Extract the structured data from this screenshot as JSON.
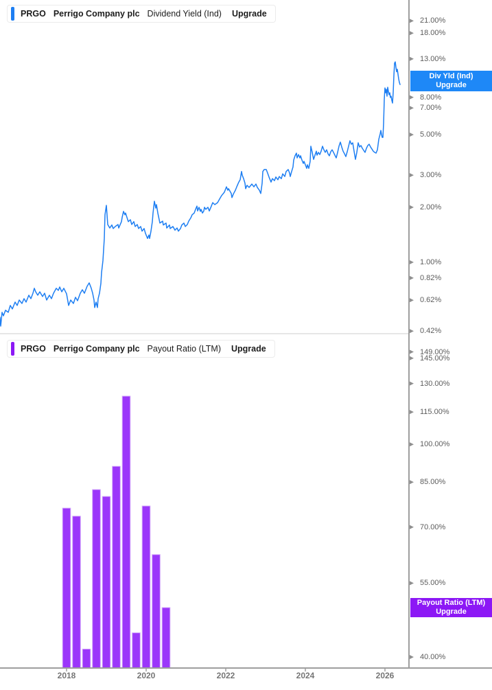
{
  "app": {
    "background": "#ffffff"
  },
  "colors": {
    "line_blue": "#1d7ef2",
    "box_blue": "#1e88f7",
    "legend_accent_blue": "#1d7ef2",
    "bar_purple": "#9b36fa",
    "bar_border": "#d2a6fb",
    "box_purple": "#8c18f5",
    "legend_accent_purple": "#8c18f5",
    "axis_line": "#9e9e9e",
    "panel_divider": "#cccccc",
    "tick_marker": "#8f8f8f",
    "tick_label_text": "#5c5c5c",
    "year_label_text": "#757575",
    "legend_text": "#1c1c1c"
  },
  "panels": [
    {
      "legend": {
        "ticker": "PRGO",
        "company": "Perrigo Company plc",
        "metric": "Dividend Yield (Ind)",
        "action": "Upgrade"
      },
      "price_label": {
        "line1": "Div Yld (Ind)",
        "line2": "Upgrade"
      }
    },
    {
      "legend": {
        "ticker": "PRGO",
        "company": "Perrigo Company plc",
        "metric": "Payout Ratio (LTM)",
        "action": "Upgrade"
      },
      "price_label": {
        "line1": "Payout Ratio (LTM)",
        "line2": "Upgrade"
      }
    }
  ],
  "x_axis": {
    "year_labels": [
      2018,
      2020,
      2022,
      2024,
      2026
    ]
  },
  "chart_data": [
    {
      "type": "line",
      "title": "Dividend Yield (Ind)",
      "ticker": "PRGO",
      "company": "Perrigo Company plc",
      "y_scale": "log",
      "y_unit": "%",
      "y_ticks_pct": [
        21,
        18,
        13,
        8,
        7,
        5,
        3,
        2,
        1,
        0.82,
        0.62,
        0.42
      ],
      "x_range": [
        2016.33,
        2026.59
      ],
      "legend_position": "top-left",
      "grid": false,
      "points": [
        [
          2016.328,
          0.5
        ],
        [
          2016.345,
          0.447
        ],
        [
          2016.38,
          0.532
        ],
        [
          2016.414,
          0.509
        ],
        [
          2016.466,
          0.546
        ],
        [
          2016.535,
          0.532
        ],
        [
          2016.586,
          0.58
        ],
        [
          2016.638,
          0.555
        ],
        [
          2016.707,
          0.605
        ],
        [
          2016.759,
          0.58
        ],
        [
          2016.811,
          0.621
        ],
        [
          2016.88,
          0.595
        ],
        [
          2016.931,
          0.632
        ],
        [
          2016.983,
          0.605
        ],
        [
          2017.052,
          0.66
        ],
        [
          2017.104,
          0.632
        ],
        [
          2017.155,
          0.677
        ],
        [
          2017.19,
          0.72
        ],
        [
          2017.224,
          0.689
        ],
        [
          2017.276,
          0.66
        ],
        [
          2017.328,
          0.689
        ],
        [
          2017.397,
          0.649
        ],
        [
          2017.448,
          0.677
        ],
        [
          2017.5,
          0.621
        ],
        [
          2017.569,
          0.66
        ],
        [
          2017.621,
          0.632
        ],
        [
          2017.672,
          0.677
        ],
        [
          2017.741,
          0.72
        ],
        [
          2017.793,
          0.701
        ],
        [
          2017.828,
          0.732
        ],
        [
          2017.879,
          0.689
        ],
        [
          2017.931,
          0.72
        ],
        [
          2018.0,
          0.672
        ],
        [
          2018.052,
          0.58
        ],
        [
          2018.103,
          0.621
        ],
        [
          2018.172,
          0.595
        ],
        [
          2018.224,
          0.643
        ],
        [
          2018.276,
          0.616
        ],
        [
          2018.345,
          0.677
        ],
        [
          2018.397,
          0.707
        ],
        [
          2018.448,
          0.677
        ],
        [
          2018.517,
          0.739
        ],
        [
          2018.569,
          0.771
        ],
        [
          2018.621,
          0.72
        ],
        [
          2018.655,
          0.677
        ],
        [
          2018.69,
          0.621
        ],
        [
          2018.707,
          0.565
        ],
        [
          2018.741,
          0.605
        ],
        [
          2018.776,
          0.565
        ],
        [
          2018.793,
          0.632
        ],
        [
          2018.828,
          0.677
        ],
        [
          2018.862,
          0.765
        ],
        [
          2018.879,
          0.878
        ],
        [
          2018.914,
          1.02
        ],
        [
          2018.948,
          1.35
        ],
        [
          2018.966,
          1.82
        ],
        [
          2019.0,
          2.05
        ],
        [
          2019.034,
          1.61
        ],
        [
          2019.086,
          1.54
        ],
        [
          2019.138,
          1.6
        ],
        [
          2019.172,
          1.53
        ],
        [
          2019.224,
          1.57
        ],
        [
          2019.293,
          1.61
        ],
        [
          2019.31,
          1.54
        ],
        [
          2019.379,
          1.67
        ],
        [
          2019.397,
          1.76
        ],
        [
          2019.431,
          1.9
        ],
        [
          2019.466,
          1.82
        ],
        [
          2019.483,
          1.86
        ],
        [
          2019.517,
          1.76
        ],
        [
          2019.552,
          1.67
        ],
        [
          2019.603,
          1.71
        ],
        [
          2019.638,
          1.61
        ],
        [
          2019.69,
          1.67
        ],
        [
          2019.724,
          1.57
        ],
        [
          2019.776,
          1.61
        ],
        [
          2019.81,
          1.53
        ],
        [
          2019.862,
          1.57
        ],
        [
          2019.897,
          1.48
        ],
        [
          2019.948,
          1.53
        ],
        [
          2019.983,
          1.44
        ],
        [
          2020.034,
          1.35
        ],
        [
          2020.069,
          1.41
        ],
        [
          2020.086,
          1.35
        ],
        [
          2020.121,
          1.48
        ],
        [
          2020.155,
          1.67
        ],
        [
          2020.172,
          1.86
        ],
        [
          2020.207,
          2.16
        ],
        [
          2020.241,
          1.98
        ],
        [
          2020.259,
          2.07
        ],
        [
          2020.293,
          1.86
        ],
        [
          2020.328,
          1.71
        ],
        [
          2020.345,
          1.64
        ],
        [
          2020.414,
          1.68
        ],
        [
          2020.431,
          1.6
        ],
        [
          2020.5,
          1.64
        ],
        [
          2020.517,
          1.54
        ],
        [
          2020.586,
          1.6
        ],
        [
          2020.603,
          1.53
        ],
        [
          2020.672,
          1.57
        ],
        [
          2020.724,
          1.5
        ],
        [
          2020.776,
          1.54
        ],
        [
          2020.81,
          1.48
        ],
        [
          2020.862,
          1.53
        ],
        [
          2020.897,
          1.6
        ],
        [
          2020.948,
          1.64
        ],
        [
          2020.983,
          1.57
        ],
        [
          2021.034,
          1.61
        ],
        [
          2021.069,
          1.68
        ],
        [
          2021.121,
          1.75
        ],
        [
          2021.155,
          1.82
        ],
        [
          2021.207,
          1.86
        ],
        [
          2021.241,
          1.95
        ],
        [
          2021.276,
          2.03
        ],
        [
          2021.293,
          1.91
        ],
        [
          2021.328,
          2.0
        ],
        [
          2021.362,
          1.9
        ],
        [
          2021.379,
          1.95
        ],
        [
          2021.414,
          1.86
        ],
        [
          2021.448,
          1.91
        ],
        [
          2021.466,
          2.0
        ],
        [
          2021.5,
          1.95
        ],
        [
          2021.552,
          2.0
        ],
        [
          2021.586,
          1.91
        ],
        [
          2021.638,
          2.03
        ],
        [
          2021.672,
          2.12
        ],
        [
          2021.724,
          2.07
        ],
        [
          2021.793,
          2.12
        ],
        [
          2021.845,
          2.22
        ],
        [
          2021.897,
          2.32
        ],
        [
          2021.966,
          2.42
        ],
        [
          2022.017,
          2.59
        ],
        [
          2022.052,
          2.48
        ],
        [
          2022.069,
          2.53
        ],
        [
          2022.138,
          2.38
        ],
        [
          2022.155,
          2.26
        ],
        [
          2022.19,
          2.36
        ],
        [
          2022.241,
          2.48
        ],
        [
          2022.276,
          2.59
        ],
        [
          2022.328,
          2.75
        ],
        [
          2022.362,
          2.83
        ],
        [
          2022.397,
          3.14
        ],
        [
          2022.414,
          3.0
        ],
        [
          2022.448,
          2.87
        ],
        [
          2022.483,
          2.71
        ],
        [
          2022.5,
          2.53
        ],
        [
          2022.534,
          2.64
        ],
        [
          2022.586,
          2.57
        ],
        [
          2022.655,
          2.68
        ],
        [
          2022.707,
          2.59
        ],
        [
          2022.759,
          2.68
        ],
        [
          2022.793,
          2.57
        ],
        [
          2022.845,
          2.48
        ],
        [
          2022.879,
          2.38
        ],
        [
          2022.914,
          2.71
        ],
        [
          2022.931,
          3.14
        ],
        [
          2022.966,
          3.22
        ],
        [
          2023.017,
          3.22
        ],
        [
          2023.052,
          3.08
        ],
        [
          2023.086,
          2.93
        ],
        [
          2023.138,
          2.75
        ],
        [
          2023.172,
          2.87
        ],
        [
          2023.224,
          2.8
        ],
        [
          2023.259,
          2.93
        ],
        [
          2023.31,
          2.83
        ],
        [
          2023.345,
          2.95
        ],
        [
          2023.397,
          2.87
        ],
        [
          2023.431,
          3.05
        ],
        [
          2023.483,
          2.95
        ],
        [
          2023.517,
          3.14
        ],
        [
          2023.569,
          3.22
        ],
        [
          2023.603,
          3.08
        ],
        [
          2023.621,
          2.95
        ],
        [
          2023.655,
          3.14
        ],
        [
          2023.69,
          3.33
        ],
        [
          2023.707,
          3.63
        ],
        [
          2023.741,
          3.83
        ],
        [
          2023.776,
          3.96
        ],
        [
          2023.793,
          3.73
        ],
        [
          2023.828,
          3.89
        ],
        [
          2023.862,
          3.73
        ],
        [
          2023.879,
          3.83
        ],
        [
          2023.914,
          3.63
        ],
        [
          2023.948,
          3.48
        ],
        [
          2023.966,
          3.57
        ],
        [
          2024.0,
          3.42
        ],
        [
          2024.034,
          3.27
        ],
        [
          2024.052,
          3.42
        ],
        [
          2024.086,
          3.27
        ],
        [
          2024.121,
          3.57
        ],
        [
          2024.138,
          4.32
        ],
        [
          2024.172,
          4.0
        ],
        [
          2024.207,
          3.66
        ],
        [
          2024.241,
          3.86
        ],
        [
          2024.276,
          4.06
        ],
        [
          2024.293,
          3.86
        ],
        [
          2024.328,
          4.0
        ],
        [
          2024.362,
          3.89
        ],
        [
          2024.397,
          4.06
        ],
        [
          2024.431,
          4.32
        ],
        [
          2024.466,
          4.13
        ],
        [
          2024.5,
          4.0
        ],
        [
          2024.534,
          4.13
        ],
        [
          2024.569,
          3.93
        ],
        [
          2024.603,
          3.83
        ],
        [
          2024.638,
          4.03
        ],
        [
          2024.672,
          4.13
        ],
        [
          2024.707,
          4.0
        ],
        [
          2024.741,
          3.86
        ],
        [
          2024.776,
          3.73
        ],
        [
          2024.81,
          4.0
        ],
        [
          2024.845,
          4.32
        ],
        [
          2024.879,
          4.55
        ],
        [
          2024.914,
          4.28
        ],
        [
          2024.948,
          4.06
        ],
        [
          2024.983,
          3.93
        ],
        [
          2025.017,
          3.79
        ],
        [
          2025.052,
          4.03
        ],
        [
          2025.086,
          4.32
        ],
        [
          2025.121,
          4.63
        ],
        [
          2025.155,
          4.43
        ],
        [
          2025.19,
          4.51
        ],
        [
          2025.224,
          4.06
        ],
        [
          2025.259,
          3.66
        ],
        [
          2025.293,
          4.0
        ],
        [
          2025.328,
          4.51
        ],
        [
          2025.362,
          4.28
        ],
        [
          2025.397,
          4.36
        ],
        [
          2025.431,
          4.21
        ],
        [
          2025.466,
          4.1
        ],
        [
          2025.5,
          4.0
        ],
        [
          2025.534,
          4.21
        ],
        [
          2025.569,
          4.36
        ],
        [
          2025.603,
          4.43
        ],
        [
          2025.638,
          4.28
        ],
        [
          2025.672,
          4.17
        ],
        [
          2025.707,
          4.06
        ],
        [
          2025.741,
          4.0
        ],
        [
          2025.776,
          3.96
        ],
        [
          2025.81,
          4.13
        ],
        [
          2025.845,
          4.71
        ],
        [
          2025.879,
          5.05
        ],
        [
          2025.897,
          5.27
        ],
        [
          2025.914,
          5.0
        ],
        [
          2025.931,
          4.83
        ],
        [
          2025.948,
          4.83
        ],
        [
          2025.966,
          5.75
        ],
        [
          2025.983,
          7.78
        ],
        [
          2026.0,
          9.01
        ],
        [
          2026.017,
          8.48
        ],
        [
          2026.034,
          8.86
        ],
        [
          2026.052,
          8.12
        ],
        [
          2026.069,
          9.09
        ],
        [
          2026.086,
          8.63
        ],
        [
          2026.103,
          8.27
        ],
        [
          2026.121,
          8.48
        ],
        [
          2026.138,
          7.99
        ],
        [
          2026.155,
          8.12
        ],
        [
          2026.172,
          7.71
        ],
        [
          2026.19,
          7.45
        ],
        [
          2026.207,
          8.48
        ],
        [
          2026.224,
          10.53
        ],
        [
          2026.241,
          12.31
        ],
        [
          2026.259,
          12.52
        ],
        [
          2026.276,
          11.69
        ],
        [
          2026.293,
          11.05
        ],
        [
          2026.31,
          11.4
        ],
        [
          2026.328,
          10.72
        ],
        [
          2026.345,
          10.09
        ],
        [
          2026.362,
          9.66
        ],
        [
          2026.379,
          9.41
        ]
      ]
    },
    {
      "type": "bar",
      "title": "Payout Ratio (LTM)",
      "ticker": "PRGO",
      "company": "Perrigo Company plc",
      "y_scale": "log",
      "y_unit": "%",
      "y_ticks_pct": [
        149,
        145,
        130,
        115,
        100,
        85,
        70,
        55,
        40
      ],
      "x_range": [
        2016.33,
        2026.59
      ],
      "legend_position": "top-left",
      "grid": false,
      "bar_width_years": 0.2,
      "x": [
        2018.0,
        2018.25,
        2018.5,
        2018.75,
        2019.0,
        2019.25,
        2019.5,
        2019.75,
        2020.0,
        2020.25,
        2020.5
      ],
      "values": [
        76.0,
        73.4,
        41.4,
        82.3,
        79.9,
        91.0,
        123.1,
        44.4,
        76.7,
        62.2,
        49.5
      ]
    }
  ]
}
